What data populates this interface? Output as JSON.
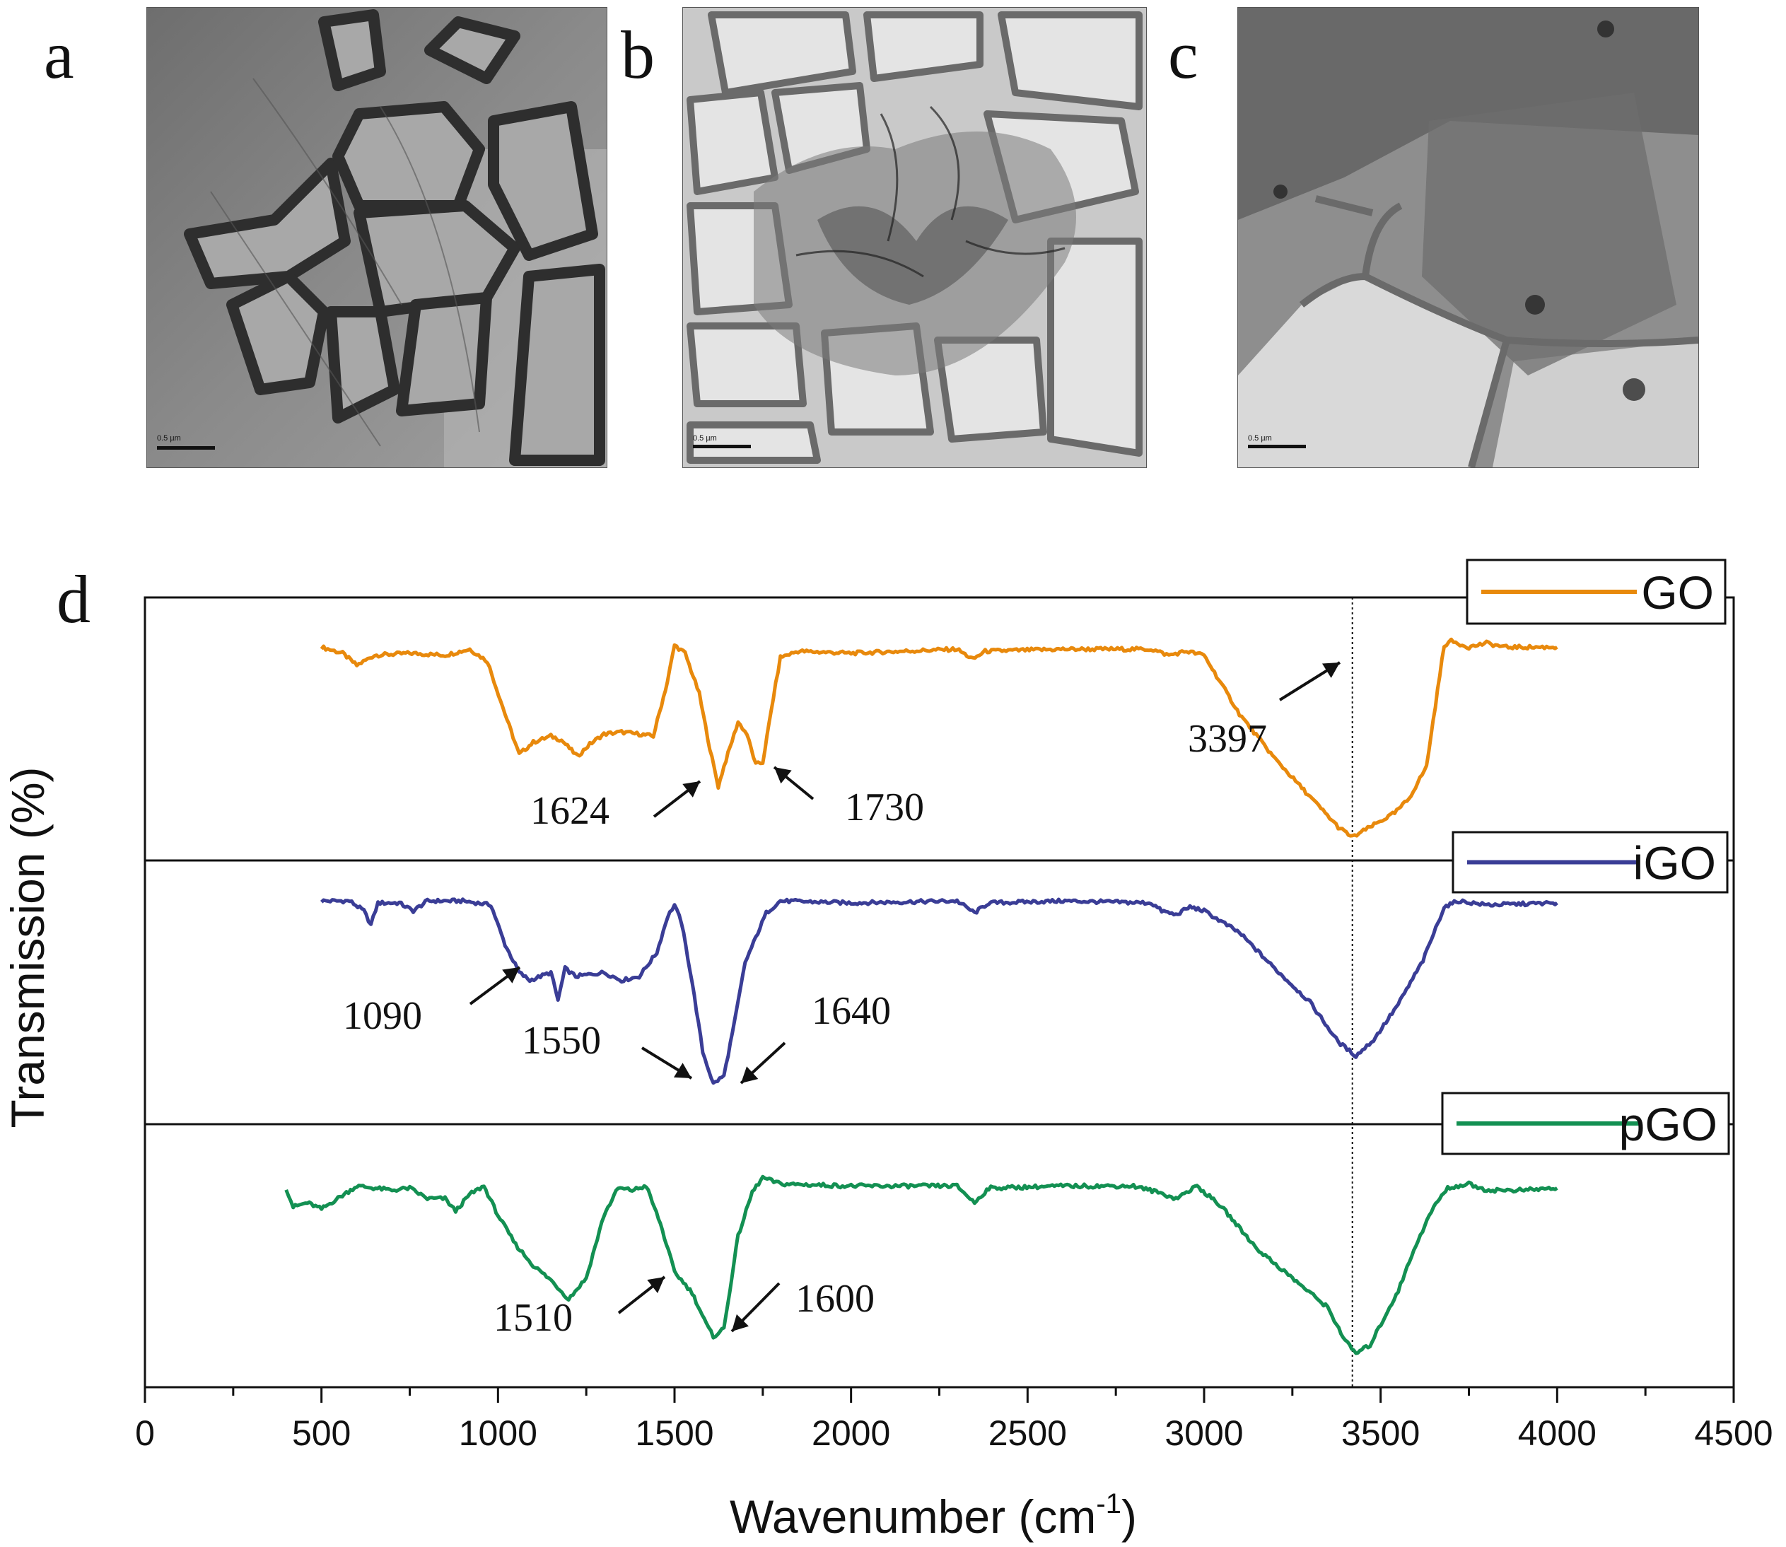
{
  "panels": {
    "a": {
      "letter": "a",
      "scale_label": "0.5 µm"
    },
    "b": {
      "letter": "b",
      "scale_label": "0.5 µm"
    },
    "c": {
      "letter": "c",
      "scale_label": "0.5 µm"
    },
    "d": {
      "letter": "d"
    }
  },
  "chart_data": {
    "type": "line",
    "xlabel": "Wavenumber (cm",
    "xlabel_sup": "-1",
    "xlabel_close": ")",
    "ylabel": "Transmission (%)",
    "xlim": [
      0,
      4500
    ],
    "xticks": [
      0,
      500,
      1000,
      1500,
      2000,
      2500,
      3000,
      3500,
      4000,
      4500
    ],
    "reference_line_x": 3420,
    "colors": {
      "GO": "#e8890c",
      "iGO": "#3a3d96",
      "pGO": "#139052"
    },
    "series": [
      {
        "name": "GO",
        "legend": "GO",
        "keypoints": [
          [
            500,
            0.95
          ],
          [
            560,
            0.92
          ],
          [
            600,
            0.86
          ],
          [
            650,
            0.91
          ],
          [
            750,
            0.92
          ],
          [
            850,
            0.91
          ],
          [
            920,
            0.94
          ],
          [
            970,
            0.88
          ],
          [
            1020,
            0.62
          ],
          [
            1060,
            0.42
          ],
          [
            1100,
            0.48
          ],
          [
            1150,
            0.51
          ],
          [
            1180,
            0.49
          ],
          [
            1225,
            0.41
          ],
          [
            1260,
            0.47
          ],
          [
            1300,
            0.52
          ],
          [
            1350,
            0.53
          ],
          [
            1400,
            0.52
          ],
          [
            1440,
            0.51
          ],
          [
            1480,
            0.78
          ],
          [
            1500,
            0.96
          ],
          [
            1530,
            0.92
          ],
          [
            1570,
            0.72
          ],
          [
            1600,
            0.45
          ],
          [
            1624,
            0.26
          ],
          [
            1640,
            0.36
          ],
          [
            1680,
            0.58
          ],
          [
            1705,
            0.52
          ],
          [
            1730,
            0.37
          ],
          [
            1750,
            0.38
          ],
          [
            1780,
            0.7
          ],
          [
            1800,
            0.9
          ],
          [
            1850,
            0.93
          ],
          [
            2000,
            0.92
          ],
          [
            2300,
            0.94
          ],
          [
            2345,
            0.89
          ],
          [
            2380,
            0.93
          ],
          [
            2600,
            0.94
          ],
          [
            2850,
            0.94
          ],
          [
            2900,
            0.91
          ],
          [
            2950,
            0.93
          ],
          [
            3000,
            0.91
          ],
          [
            3100,
            0.62
          ],
          [
            3200,
            0.4
          ],
          [
            3300,
            0.21
          ],
          [
            3380,
            0.06
          ],
          [
            3420,
            0.01
          ],
          [
            3470,
            0.06
          ],
          [
            3540,
            0.13
          ],
          [
            3580,
            0.2
          ],
          [
            3630,
            0.36
          ],
          [
            3680,
            0.96
          ],
          [
            3700,
            0.98
          ],
          [
            3750,
            0.95
          ],
          [
            3800,
            0.97
          ],
          [
            3850,
            0.95
          ],
          [
            4000,
            0.95
          ]
        ],
        "annotations": [
          "1624",
          "1730",
          "3397"
        ]
      },
      {
        "name": "iGO",
        "legend": "iGO",
        "keypoints": [
          [
            500,
            0.96
          ],
          [
            580,
            0.96
          ],
          [
            620,
            0.91
          ],
          [
            640,
            0.84
          ],
          [
            660,
            0.95
          ],
          [
            720,
            0.95
          ],
          [
            760,
            0.91
          ],
          [
            800,
            0.96
          ],
          [
            900,
            0.96
          ],
          [
            980,
            0.94
          ],
          [
            1020,
            0.74
          ],
          [
            1060,
            0.6
          ],
          [
            1090,
            0.56
          ],
          [
            1150,
            0.6
          ],
          [
            1170,
            0.46
          ],
          [
            1190,
            0.62
          ],
          [
            1220,
            0.58
          ],
          [
            1300,
            0.6
          ],
          [
            1350,
            0.56
          ],
          [
            1400,
            0.58
          ],
          [
            1450,
            0.7
          ],
          [
            1480,
            0.88
          ],
          [
            1500,
            0.94
          ],
          [
            1520,
            0.85
          ],
          [
            1550,
            0.55
          ],
          [
            1580,
            0.2
          ],
          [
            1610,
            0.04
          ],
          [
            1640,
            0.08
          ],
          [
            1670,
            0.35
          ],
          [
            1700,
            0.65
          ],
          [
            1760,
            0.9
          ],
          [
            1800,
            0.96
          ],
          [
            2000,
            0.95
          ],
          [
            2300,
            0.96
          ],
          [
            2350,
            0.9
          ],
          [
            2390,
            0.95
          ],
          [
            2600,
            0.96
          ],
          [
            2850,
            0.95
          ],
          [
            2880,
            0.91
          ],
          [
            2920,
            0.89
          ],
          [
            2960,
            0.93
          ],
          [
            3000,
            0.91
          ],
          [
            3100,
            0.8
          ],
          [
            3200,
            0.62
          ],
          [
            3300,
            0.45
          ],
          [
            3380,
            0.25
          ],
          [
            3430,
            0.18
          ],
          [
            3480,
            0.26
          ],
          [
            3550,
            0.44
          ],
          [
            3620,
            0.66
          ],
          [
            3680,
            0.93
          ],
          [
            3720,
            0.96
          ],
          [
            3800,
            0.94
          ],
          [
            4000,
            0.95
          ]
        ],
        "annotations": [
          "1090",
          "1550",
          "1640"
        ]
      },
      {
        "name": "pGO",
        "legend": "pGO",
        "keypoints": [
          [
            400,
            0.85
          ],
          [
            420,
            0.76
          ],
          [
            460,
            0.78
          ],
          [
            500,
            0.75
          ],
          [
            600,
            0.86
          ],
          [
            700,
            0.84
          ],
          [
            750,
            0.85
          ],
          [
            800,
            0.8
          ],
          [
            850,
            0.8
          ],
          [
            880,
            0.74
          ],
          [
            920,
            0.82
          ],
          [
            960,
            0.86
          ],
          [
            1000,
            0.72
          ],
          [
            1050,
            0.58
          ],
          [
            1100,
            0.48
          ],
          [
            1150,
            0.41
          ],
          [
            1200,
            0.32
          ],
          [
            1250,
            0.42
          ],
          [
            1300,
            0.72
          ],
          [
            1340,
            0.85
          ],
          [
            1380,
            0.84
          ],
          [
            1420,
            0.86
          ],
          [
            1460,
            0.68
          ],
          [
            1500,
            0.45
          ],
          [
            1550,
            0.35
          ],
          [
            1590,
            0.2
          ],
          [
            1610,
            0.14
          ],
          [
            1640,
            0.18
          ],
          [
            1680,
            0.62
          ],
          [
            1720,
            0.83
          ],
          [
            1750,
            0.9
          ],
          [
            1800,
            0.87
          ],
          [
            2000,
            0.86
          ],
          [
            2300,
            0.86
          ],
          [
            2350,
            0.78
          ],
          [
            2390,
            0.85
          ],
          [
            2600,
            0.86
          ],
          [
            2800,
            0.86
          ],
          [
            2870,
            0.83
          ],
          [
            2920,
            0.8
          ],
          [
            2980,
            0.86
          ],
          [
            3050,
            0.76
          ],
          [
            3150,
            0.56
          ],
          [
            3250,
            0.42
          ],
          [
            3350,
            0.28
          ],
          [
            3400,
            0.12
          ],
          [
            3430,
            0.06
          ],
          [
            3470,
            0.1
          ],
          [
            3550,
            0.36
          ],
          [
            3600,
            0.58
          ],
          [
            3650,
            0.76
          ],
          [
            3690,
            0.85
          ],
          [
            3750,
            0.87
          ],
          [
            3800,
            0.84
          ],
          [
            3900,
            0.84
          ],
          [
            4000,
            0.85
          ]
        ],
        "annotations": [
          "1510",
          "1600"
        ]
      }
    ]
  }
}
